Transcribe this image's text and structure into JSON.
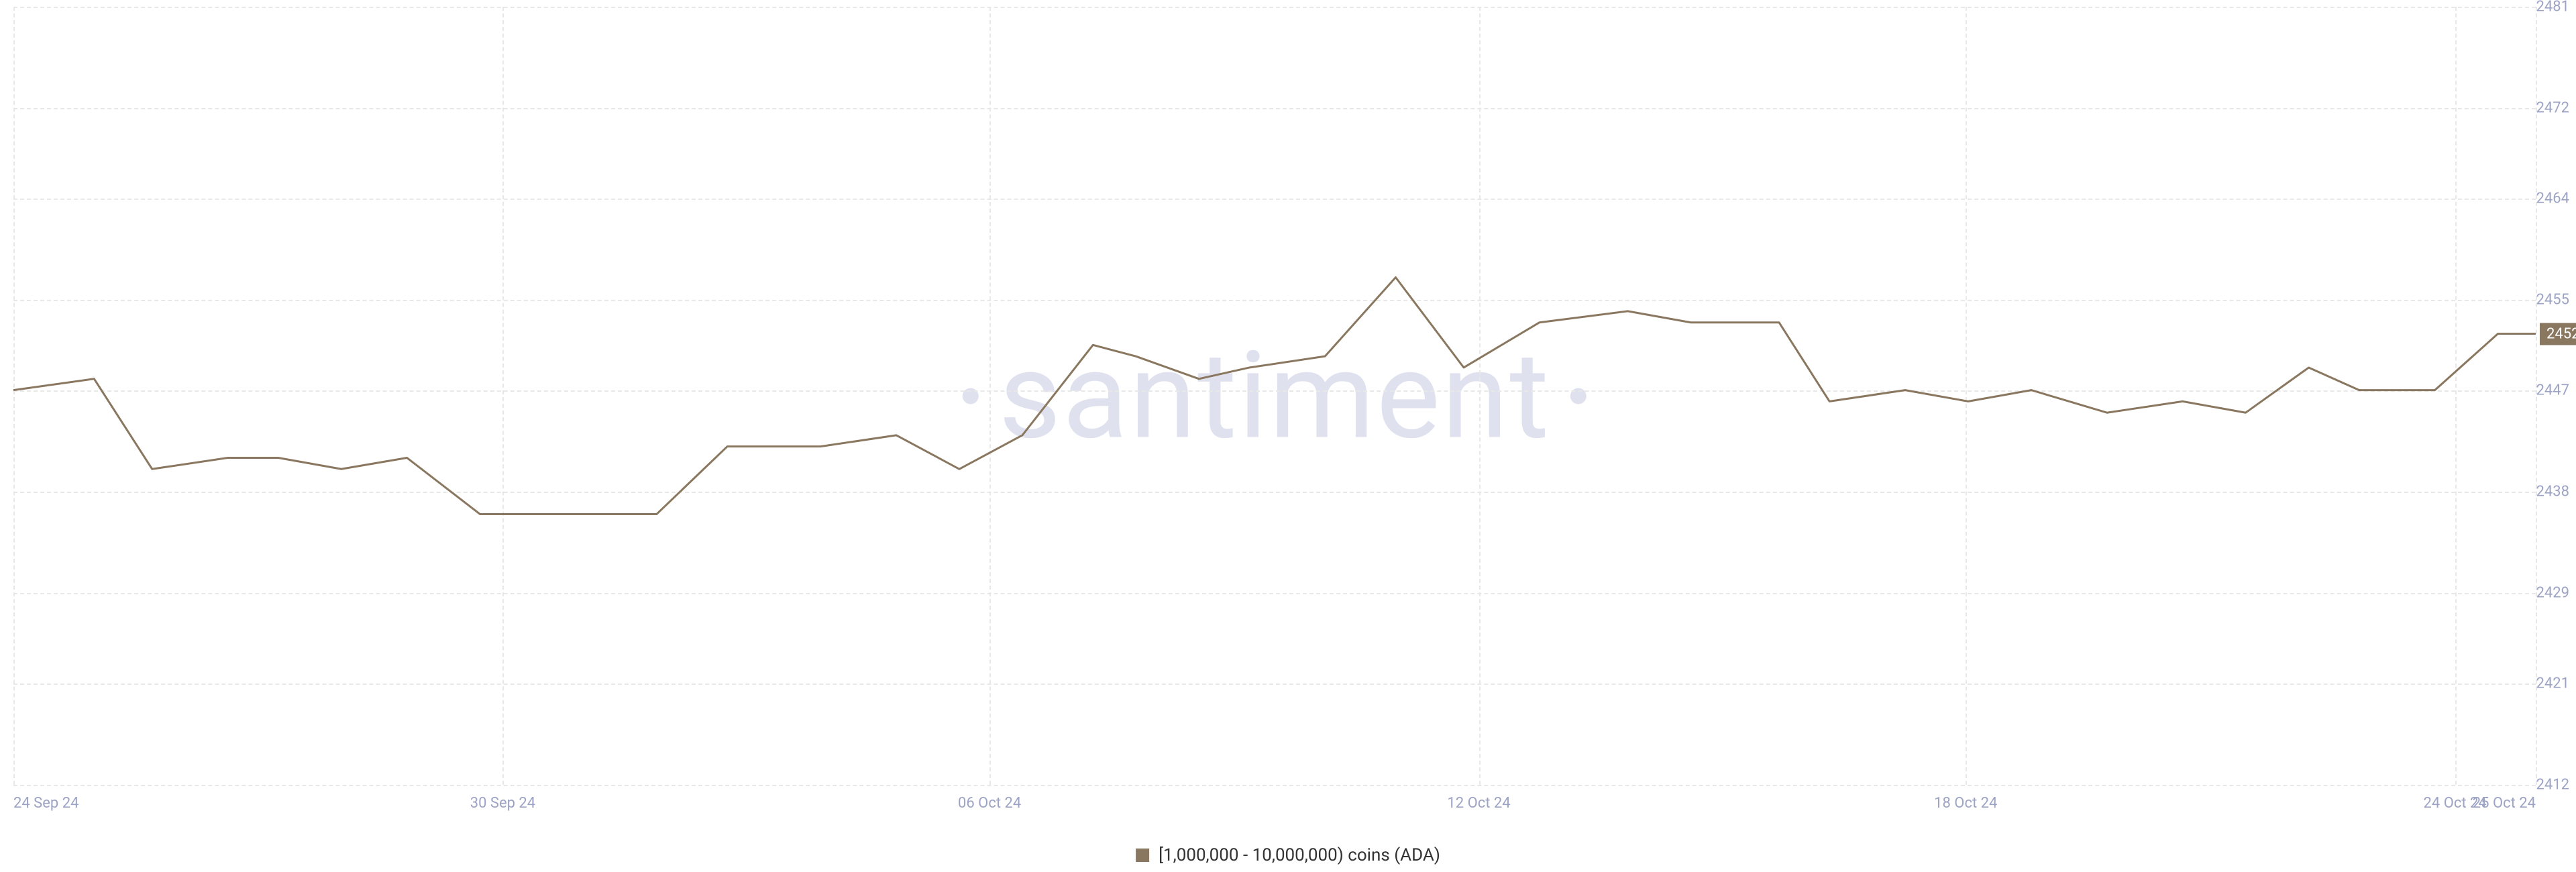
{
  "chart": {
    "type": "line",
    "watermark_text": "santiment",
    "watermark_color": "#dfe2ee",
    "background_color": "#ffffff",
    "grid_color": "#e8e8e8",
    "axis_label_color": "#9ca3c4",
    "axis_label_fontsize": 22,
    "line_color": "#8a7760",
    "line_width": 3,
    "ylim": [
      2412,
      2481
    ],
    "y_ticks": [
      2412,
      2421,
      2429,
      2438,
      2447,
      2455,
      2464,
      2472,
      2481
    ],
    "x_ticks": [
      {
        "pos": 0.0,
        "label": "24 Sep 24"
      },
      {
        "pos": 0.194,
        "label": "30 Sep 24"
      },
      {
        "pos": 0.387,
        "label": "06 Oct 24"
      },
      {
        "pos": 0.581,
        "label": "12 Oct 24"
      },
      {
        "pos": 0.774,
        "label": "18 Oct 24"
      },
      {
        "pos": 0.968,
        "label": "24 Oct 24"
      },
      {
        "pos": 1.0,
        "label": "25 Oct 24"
      }
    ],
    "series": {
      "name": "[1,000,000 - 10,000,000) coins (ADA)",
      "color": "#8a7760",
      "points": [
        {
          "x": 0.0,
          "y": 2447
        },
        {
          "x": 0.032,
          "y": 2448
        },
        {
          "x": 0.055,
          "y": 2440
        },
        {
          "x": 0.085,
          "y": 2441
        },
        {
          "x": 0.105,
          "y": 2441
        },
        {
          "x": 0.13,
          "y": 2440
        },
        {
          "x": 0.156,
          "y": 2441
        },
        {
          "x": 0.185,
          "y": 2436
        },
        {
          "x": 0.22,
          "y": 2436
        },
        {
          "x": 0.255,
          "y": 2436
        },
        {
          "x": 0.283,
          "y": 2442
        },
        {
          "x": 0.32,
          "y": 2442
        },
        {
          "x": 0.35,
          "y": 2443
        },
        {
          "x": 0.375,
          "y": 2440
        },
        {
          "x": 0.4,
          "y": 2443
        },
        {
          "x": 0.428,
          "y": 2451
        },
        {
          "x": 0.445,
          "y": 2450
        },
        {
          "x": 0.47,
          "y": 2448
        },
        {
          "x": 0.49,
          "y": 2449
        },
        {
          "x": 0.52,
          "y": 2450
        },
        {
          "x": 0.548,
          "y": 2457
        },
        {
          "x": 0.575,
          "y": 2449
        },
        {
          "x": 0.605,
          "y": 2453
        },
        {
          "x": 0.64,
          "y": 2454
        },
        {
          "x": 0.665,
          "y": 2453
        },
        {
          "x": 0.7,
          "y": 2453
        },
        {
          "x": 0.72,
          "y": 2446
        },
        {
          "x": 0.75,
          "y": 2447
        },
        {
          "x": 0.775,
          "y": 2446
        },
        {
          "x": 0.8,
          "y": 2447
        },
        {
          "x": 0.83,
          "y": 2445
        },
        {
          "x": 0.86,
          "y": 2446
        },
        {
          "x": 0.885,
          "y": 2445
        },
        {
          "x": 0.91,
          "y": 2449
        },
        {
          "x": 0.93,
          "y": 2447
        },
        {
          "x": 0.96,
          "y": 2447
        },
        {
          "x": 0.985,
          "y": 2452
        },
        {
          "x": 1.0,
          "y": 2452
        }
      ],
      "last_value": 2452,
      "last_value_badge_bg": "#8a7760",
      "last_value_badge_text_color": "#ffffff"
    },
    "legend_text_color": "#333333",
    "legend_fontsize": 26
  }
}
